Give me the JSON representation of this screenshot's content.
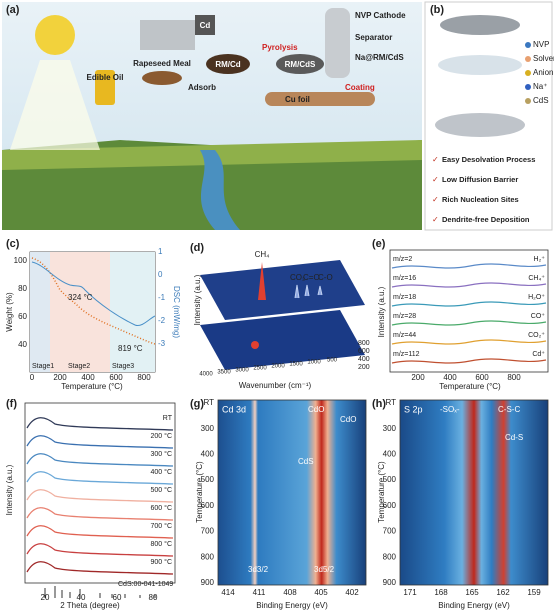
{
  "a": {
    "label": "(a)",
    "edible_oil": "Edible Oil",
    "rapeseed_meal": "Rapeseed Meal",
    "cd": "Cd",
    "adsorb": "Adsorb",
    "rm_cd": "RM/Cd",
    "pyrolysis": "Pyrolysis",
    "rm_cds": "RM/CdS",
    "nvp_cathode": "NVP Cathode",
    "separator": "Separator",
    "anode": "Na@RM/CdS",
    "cu_foil": "Cu foil",
    "coating": "Coating"
  },
  "b": {
    "label": "(b)",
    "legend": [
      "NVP",
      "Solvent",
      "Anion",
      "Na⁺",
      "CdS"
    ],
    "features": [
      "Easy Desolvation Process",
      "Low Diffusion Barrier",
      "Rich Nucleation Sites",
      "Dendrite-free Deposition"
    ]
  },
  "c": {
    "label": "(c)",
    "ylabel": "Weight (%)",
    "y2label": "DSC (mW/mg)",
    "xlabel": "Temperature (°C)",
    "yticks": [
      100,
      80,
      60,
      40
    ],
    "y2ticks": [
      1,
      0,
      -1,
      -2,
      -3
    ],
    "xticks": [
      0,
      200,
      400,
      600,
      800
    ],
    "annotations": [
      "324 °C",
      "819 °C"
    ],
    "stages": [
      "Stage1",
      "Stage2",
      "Stage3"
    ]
  },
  "d": {
    "label": "(d)",
    "peaks": [
      "CH₄",
      "CO₂",
      "C=O",
      "C-O"
    ],
    "zlabel": "Intensity (a.u.)",
    "xlabel": "Wavenumber (cm⁻¹)",
    "xticks": [
      4000,
      3500,
      3000,
      2500,
      2000,
      1500,
      1000,
      500
    ],
    "tticks": [
      800,
      600,
      400,
      200
    ]
  },
  "e": {
    "label": "(e)",
    "ylabel": "Intensity (a.u.)",
    "xlabel": "Temperature (°C)",
    "xticks": [
      200,
      400,
      600,
      800
    ],
    "signals": [
      {
        "mz": "m/z=2",
        "ion": "H₂⁺"
      },
      {
        "mz": "m/z=16",
        "ion": "CH₄⁺"
      },
      {
        "mz": "m/z=18",
        "ion": "H₂O⁺"
      },
      {
        "mz": "m/z=28",
        "ion": "CO⁺"
      },
      {
        "mz": "m/z=44",
        "ion": "CO₂⁺"
      },
      {
        "mz": "m/z=112",
        "ion": "Cd⁺"
      }
    ]
  },
  "f": {
    "label": "(f)",
    "ylabel": "Intensity (a.u.)",
    "xlabel": "2 Theta (degree)",
    "xticks": [
      20,
      40,
      60,
      80
    ],
    "curves": [
      "RT",
      "200 °C",
      "300 °C",
      "400 °C",
      "500 °C",
      "600 °C",
      "700 °C",
      "800 °C",
      "900 °C"
    ],
    "reference": "CdS:00-041-1049"
  },
  "g": {
    "label": "(g)",
    "title": "Cd 3d",
    "peaks": [
      "CdO",
      "CdO",
      "CdS",
      "3d3/2",
      "3d5/2"
    ],
    "ylabel": "Temperature (°C)",
    "xlabel": "Binding Energy (eV)",
    "yticks": [
      "RT",
      300,
      400,
      500,
      600,
      700,
      800,
      900
    ],
    "xticks": [
      414,
      411,
      408,
      405,
      402
    ]
  },
  "h": {
    "label": "(h)",
    "title": "S 2p",
    "peaks": [
      "-SOₓ-",
      "C-S-C",
      "Cd-S"
    ],
    "ylabel": "Temperature (°C)",
    "xlabel": "Binding Energy (eV)",
    "yticks": [
      "RT",
      300,
      400,
      500,
      600,
      700,
      800,
      900
    ],
    "xticks": [
      171,
      168,
      165,
      162,
      159
    ]
  }
}
